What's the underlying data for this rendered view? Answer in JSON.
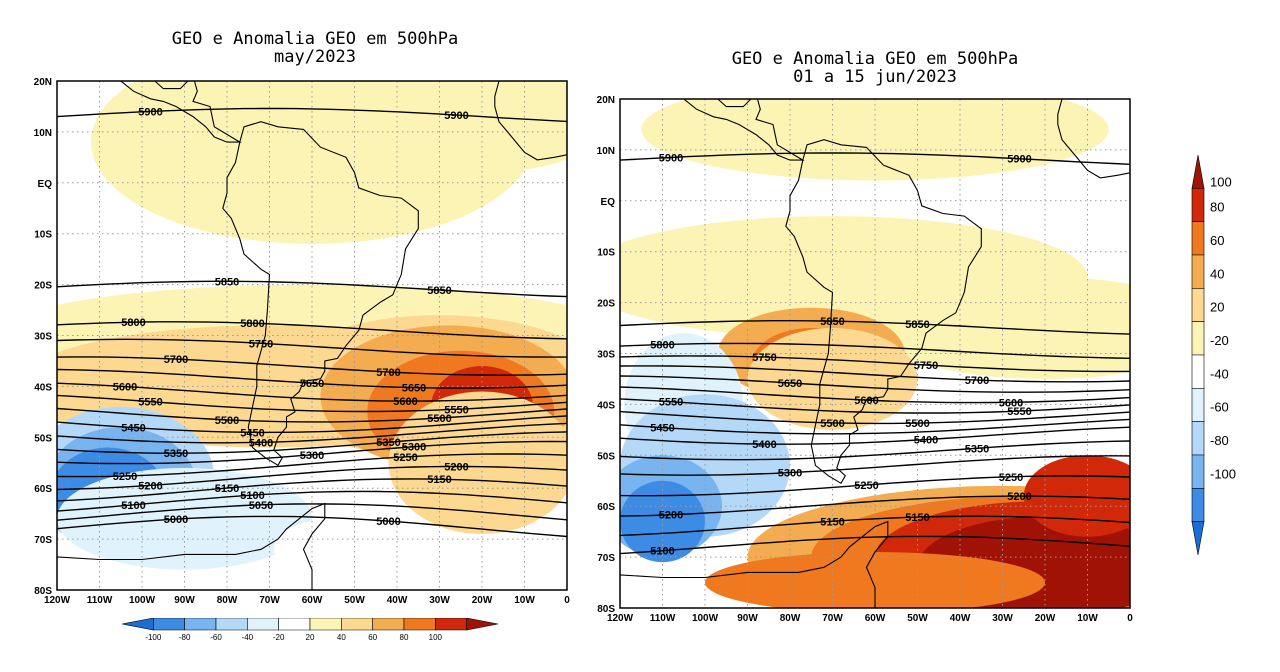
{
  "left": {
    "title1": "GEO e Anomalia GEO em 500hPa",
    "title2": "may/2023",
    "lat_labels": [
      "20N",
      "10N",
      "EQ",
      "10S",
      "20S",
      "30S",
      "40S",
      "50S",
      "60S",
      "70S",
      "80S"
    ],
    "lon_labels": [
      "120W",
      "110W",
      "100W",
      "90W",
      "80W",
      "70W",
      "60W",
      "50W",
      "40W",
      "30W",
      "20W",
      "10W",
      "0"
    ],
    "contours": [
      {
        "label": "5900",
        "lat": 13
      },
      {
        "label": "5850",
        "lat": -21
      },
      {
        "label": "5800",
        "lat": -29
      },
      {
        "label": "5750",
        "lat": -32.5
      },
      {
        "label": "5700",
        "lat": -36
      },
      {
        "label": "5650",
        "lat": -38.5
      },
      {
        "label": "5600",
        "lat": -41
      },
      {
        "label": "5550",
        "lat": -43
      },
      {
        "label": "5500",
        "lat": -45
      },
      {
        "label": "5450",
        "lat": -47
      },
      {
        "label": "5400",
        "lat": -49
      },
      {
        "label": "5350",
        "lat": -51
      },
      {
        "label": "5300",
        "lat": -53
      },
      {
        "label": "5250",
        "lat": -55.5
      },
      {
        "label": "5200",
        "lat": -58
      },
      {
        "label": "5150",
        "lat": -60.5
      },
      {
        "label": "5100",
        "lat": -63
      },
      {
        "label": "5050",
        "lat": -65.5
      },
      {
        "label": "5000",
        "lat": -68
      }
    ],
    "colorbar_labels": [
      "-100",
      "-80",
      "-60",
      "-40",
      "-20",
      "20",
      "40",
      "60",
      "80",
      "100"
    ]
  },
  "right": {
    "title1": "GEO e Anomalia GEO em 500hPa",
    "title2": "01 a 15 jun/2023",
    "lat_labels": [
      "20N",
      "10N",
      "EQ",
      "10S",
      "20S",
      "30S",
      "40S",
      "50S",
      "60S",
      "70S",
      "80S"
    ],
    "lon_labels": [
      "120W",
      "110W",
      "100W",
      "90W",
      "80W",
      "70W",
      "60W",
      "50W",
      "40W",
      "30W",
      "20W",
      "10W",
      "0"
    ],
    "contours": [
      {
        "label": "5900",
        "lat": 8
      },
      {
        "label": "5850",
        "lat": -25
      },
      {
        "label": "5800",
        "lat": -29.5
      },
      {
        "label": "5750",
        "lat": -32
      },
      {
        "label": "5700",
        "lat": -34
      },
      {
        "label": "5650",
        "lat": -36
      },
      {
        "label": "5600",
        "lat": -38
      },
      {
        "label": "5550",
        "lat": -40
      },
      {
        "label": "5500",
        "lat": -42
      },
      {
        "label": "5450",
        "lat": -44
      },
      {
        "label": "5400",
        "lat": -46
      },
      {
        "label": "5350",
        "lat": -49
      },
      {
        "label": "5300",
        "lat": -52
      },
      {
        "label": "5250",
        "lat": -56
      },
      {
        "label": "5200",
        "lat": -60
      },
      {
        "label": "5150",
        "lat": -64
      },
      {
        "label": "5100",
        "lat": -68
      }
    ],
    "colorbar_labels": [
      "100",
      "80",
      "60",
      "40",
      "20",
      "-20",
      "-40",
      "-60",
      "-80",
      "-100"
    ]
  },
  "colors": {
    "anom": [
      "#1c6ed4",
      "#3c8ce6",
      "#78b4f0",
      "#b4d8f8",
      "#e0f2fc",
      "#ffffff",
      "#fcf4b4",
      "#fcd890",
      "#f4ac50",
      "#f0781e",
      "#d2280a",
      "#a01206"
    ],
    "land_line": "#000000",
    "contour": "#000000",
    "grid": "#9a9a9a"
  }
}
